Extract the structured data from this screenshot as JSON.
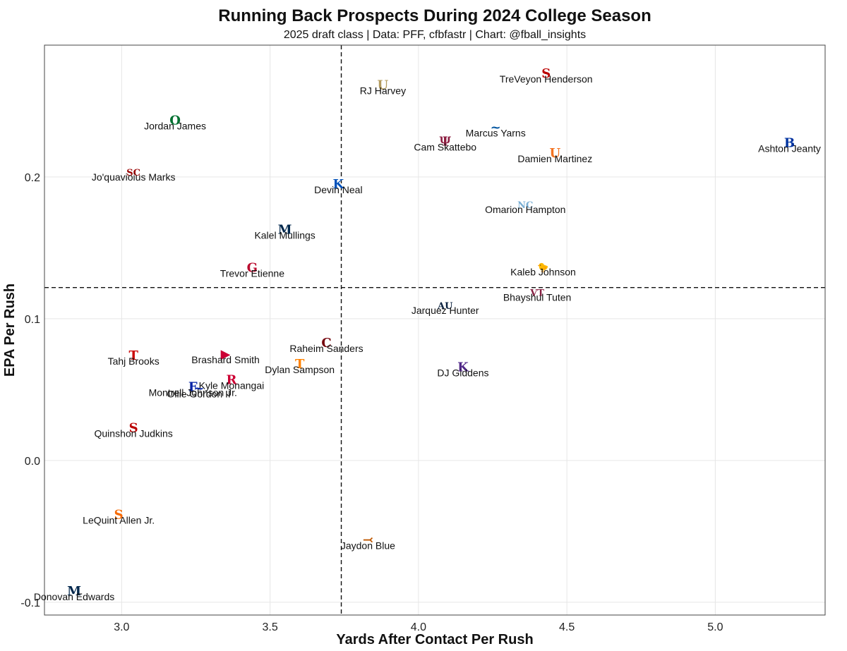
{
  "chart_data": {
    "type": "scatter",
    "title": "Running Back Prospects During 2024 College Season",
    "subtitle": "2025 draft class | Data: PFF, cfbfastr | Chart: @fball_insights",
    "xlabel": "Yards After Contact Per Rush",
    "ylabel": "EPA Per Rush",
    "xlim": [
      2.74,
      5.37
    ],
    "ylim": [
      -0.109,
      0.293
    ],
    "xticks": [
      3.0,
      3.5,
      4.0,
      4.5,
      5.0
    ],
    "xtick_labels": [
      "3.0",
      "3.5",
      "4.0",
      "4.5",
      "5.0"
    ],
    "yticks": [
      -0.1,
      0.0,
      0.1,
      0.2
    ],
    "ytick_labels": [
      "-0.1",
      "0.0",
      "0.1",
      "0.2"
    ],
    "ref_x": 3.74,
    "ref_y": 0.122,
    "grid": true,
    "points": [
      {
        "name": "TreVeyon Henderson",
        "x": 4.43,
        "y": 0.273,
        "logo": "S",
        "color": "#bb0000"
      },
      {
        "name": "RJ Harvey",
        "x": 3.88,
        "y": 0.265,
        "logo": "U",
        "color": "#b39b5e"
      },
      {
        "name": "Jordan James",
        "x": 3.18,
        "y": 0.24,
        "logo": "O",
        "color": "#007030"
      },
      {
        "name": "Marcus Yarns",
        "x": 4.26,
        "y": 0.235,
        "logo": "~",
        "color": "#00539f"
      },
      {
        "name": "Cam Skattebo",
        "x": 4.09,
        "y": 0.225,
        "logo": "Ψ",
        "color": "#8c1d40"
      },
      {
        "name": "Ashton Jeanty",
        "x": 5.25,
        "y": 0.224,
        "logo": "B",
        "color": "#0033a0"
      },
      {
        "name": "Damien Martinez",
        "x": 4.46,
        "y": 0.217,
        "logo": "U",
        "color": "#f47321"
      },
      {
        "name": "Jo'quavioius Marks",
        "x": 3.04,
        "y": 0.204,
        "logo": "SC",
        "color": "#990000"
      },
      {
        "name": "Devin Neal",
        "x": 3.73,
        "y": 0.195,
        "logo": "K",
        "color": "#0051ba"
      },
      {
        "name": "Omarion Hampton",
        "x": 4.36,
        "y": 0.181,
        "logo": "NC",
        "color": "#7bafd4"
      },
      {
        "name": "Kalel Mullings",
        "x": 3.55,
        "y": 0.163,
        "logo": "M",
        "color": "#00274c"
      },
      {
        "name": "Kaleb Johnson",
        "x": 4.42,
        "y": 0.137,
        "logo": "🐤",
        "color": "#111111"
      },
      {
        "name": "Trevor Etienne",
        "x": 3.44,
        "y": 0.136,
        "logo": "G",
        "color": "#ba0c2f"
      },
      {
        "name": "Bhayshul Tuten",
        "x": 4.4,
        "y": 0.119,
        "logo": "VT",
        "color": "#861f41"
      },
      {
        "name": "Jarquez Hunter",
        "x": 4.09,
        "y": 0.11,
        "logo": "AU",
        "color": "#0c2340"
      },
      {
        "name": "Raheim Sanders",
        "x": 3.69,
        "y": 0.083,
        "logo": "C",
        "color": "#73000a"
      },
      {
        "name": "Tahj Brooks",
        "x": 3.04,
        "y": 0.074,
        "logo": "T",
        "color": "#cc0000"
      },
      {
        "name": "Brashard Smith",
        "x": 3.35,
        "y": 0.075,
        "logo": "▶",
        "color": "#cc0035"
      },
      {
        "name": "Dylan Sampson",
        "x": 3.6,
        "y": 0.068,
        "logo": "T",
        "color": "#ff8200"
      },
      {
        "name": "DJ Giddens",
        "x": 4.15,
        "y": 0.066,
        "logo": "K",
        "color": "#512888"
      },
      {
        "name": "Kyle Monangai",
        "x": 3.37,
        "y": 0.057,
        "logo": "R",
        "color": "#cc0033"
      },
      {
        "name": "Montrell Johnson Jr.",
        "x": 3.24,
        "y": 0.052,
        "logo": "F",
        "color": "#0021a5"
      },
      {
        "name": "Ollie Gordon II",
        "x": 3.26,
        "y": 0.051,
        "logo": "~",
        "color": "#0021a5"
      },
      {
        "name": "Quinshon Judkins",
        "x": 3.04,
        "y": 0.023,
        "logo": "S",
        "color": "#bb0000"
      },
      {
        "name": "LeQuint Allen Jr.",
        "x": 2.99,
        "y": -0.038,
        "logo": "S",
        "color": "#f76900"
      },
      {
        "name": "Jaydon Blue",
        "x": 3.83,
        "y": -0.056,
        "logo": "⤙",
        "color": "#bf5700"
      },
      {
        "name": "Donovan Edwards",
        "x": 2.84,
        "y": -0.092,
        "logo": "M",
        "color": "#00274c"
      }
    ]
  }
}
